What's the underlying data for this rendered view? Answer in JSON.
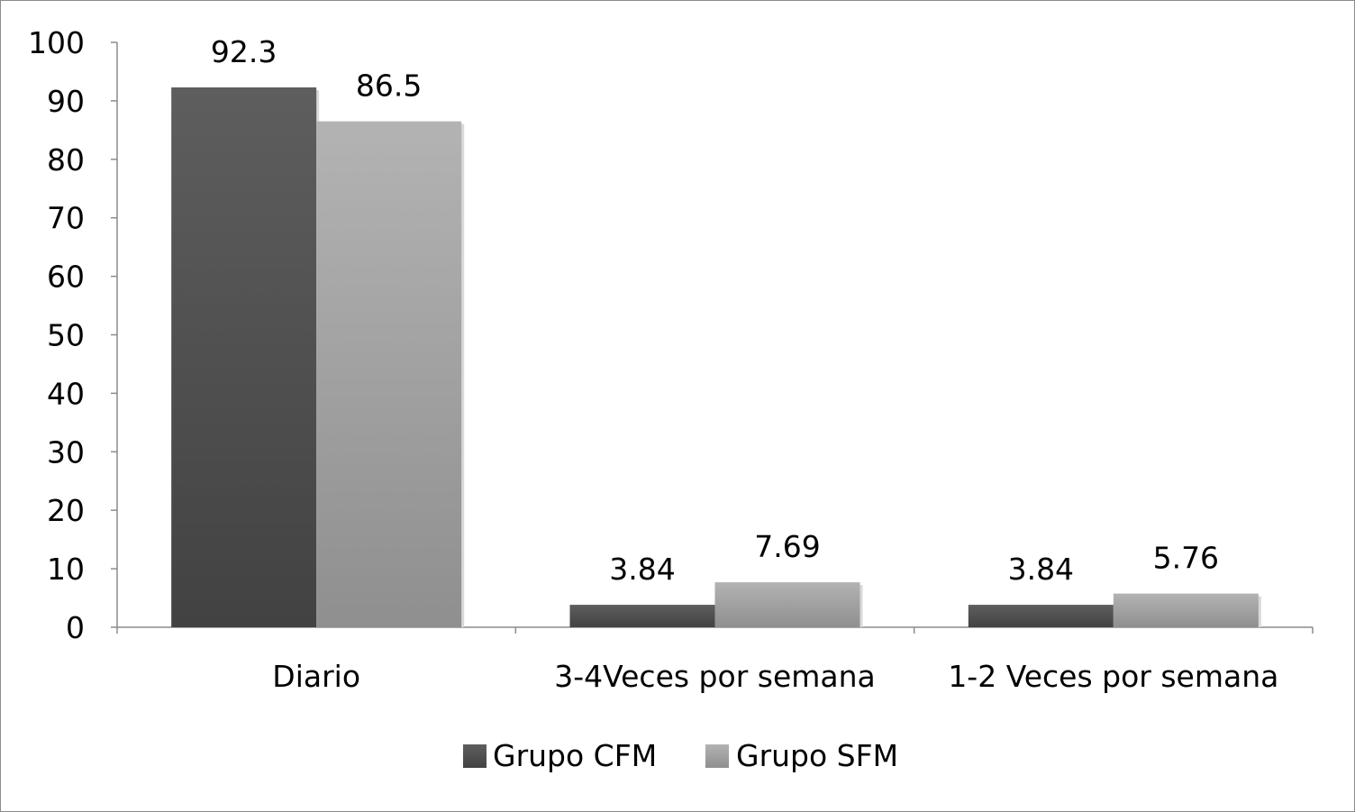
{
  "chart_data": {
    "type": "bar",
    "title": "",
    "xlabel": "",
    "ylabel": "",
    "categories": [
      "Diario",
      "3-4Veces por semana",
      "1-2 Veces por semana"
    ],
    "series": [
      {
        "name": "Grupo CFM",
        "values": [
          92.3,
          3.84,
          3.84
        ],
        "labels": [
          "92.3",
          "3.84",
          "3.84"
        ],
        "color": "#4d4d4d"
      },
      {
        "name": "Grupo SFM",
        "values": [
          86.5,
          7.69,
          5.76
        ],
        "labels": [
          "86.5",
          "7.69",
          "5.76"
        ],
        "color": "#a6a6a6"
      }
    ],
    "ylim": [
      0,
      100
    ],
    "yticks": [
      0,
      10,
      20,
      30,
      40,
      50,
      60,
      70,
      80,
      90,
      100
    ],
    "ytick_labels": [
      "0",
      "10",
      "20",
      "30",
      "40",
      "50",
      "60",
      "70",
      "80",
      "90",
      "100"
    ],
    "grid": false,
    "legend_position": "bottom"
  }
}
